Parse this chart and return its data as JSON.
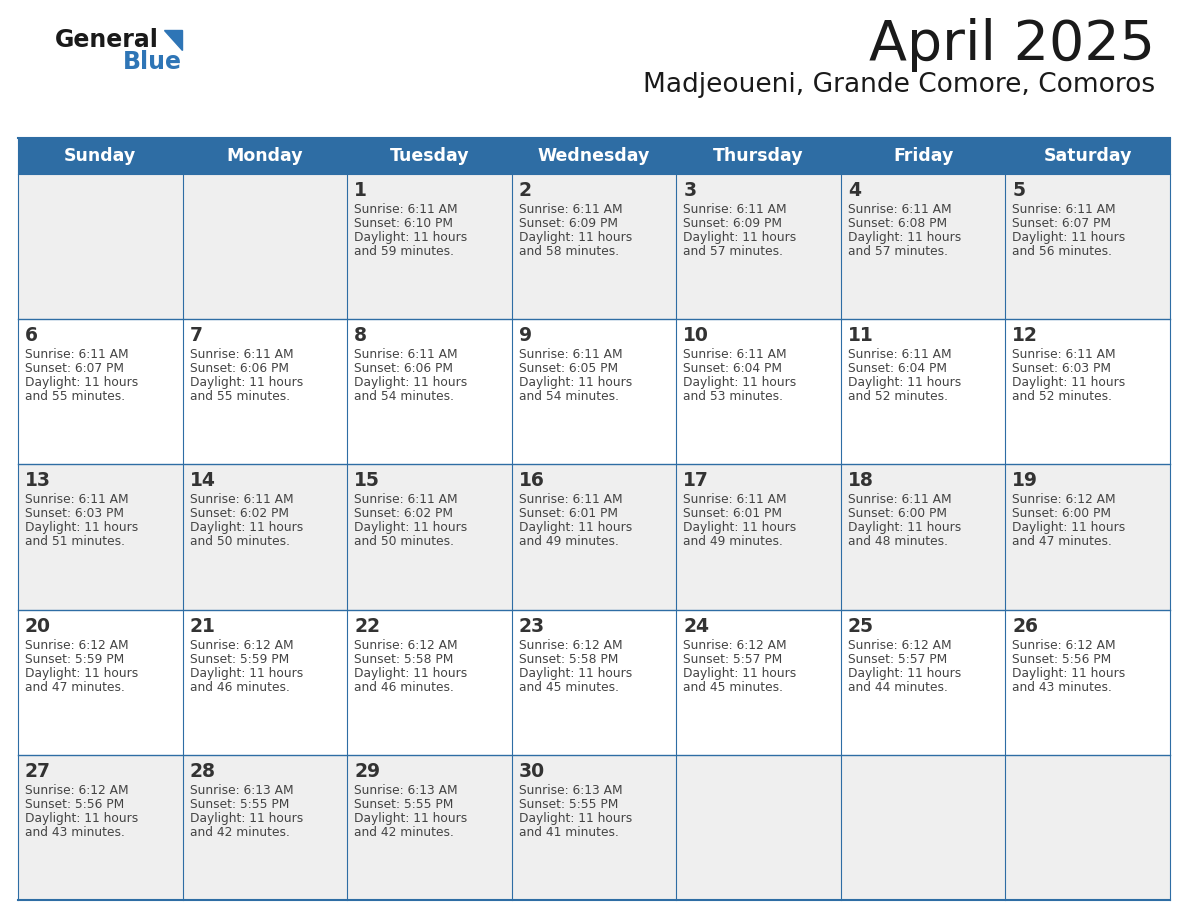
{
  "title": "April 2025",
  "subtitle": "Madjeoueni, Grande Comore, Comoros",
  "header_bg_color": "#2E6DA4",
  "header_text_color": "#FFFFFF",
  "day_names": [
    "Sunday",
    "Monday",
    "Tuesday",
    "Wednesday",
    "Thursday",
    "Friday",
    "Saturday"
  ],
  "grid_line_color": "#2E6DA4",
  "row0_bg": "#EFEFEF",
  "row1_bg": "#FFFFFF",
  "row2_bg": "#EFEFEF",
  "row3_bg": "#FFFFFF",
  "row4_bg": "#EFEFEF",
  "title_color": "#1a1a1a",
  "subtitle_color": "#1a1a1a",
  "logo_general_color": "#1a1a1a",
  "logo_blue_color": "#2E75B6",
  "cell_text_color": "#444444",
  "day_number_color": "#333333",
  "weeks": [
    {
      "days": [
        {
          "date": null,
          "sunrise": null,
          "sunset": null,
          "daylight": null
        },
        {
          "date": null,
          "sunrise": null,
          "sunset": null,
          "daylight": null
        },
        {
          "date": 1,
          "sunrise": "6:11 AM",
          "sunset": "6:10 PM",
          "daylight": "11 hours and 59 minutes."
        },
        {
          "date": 2,
          "sunrise": "6:11 AM",
          "sunset": "6:09 PM",
          "daylight": "11 hours and 58 minutes."
        },
        {
          "date": 3,
          "sunrise": "6:11 AM",
          "sunset": "6:09 PM",
          "daylight": "11 hours and 57 minutes."
        },
        {
          "date": 4,
          "sunrise": "6:11 AM",
          "sunset": "6:08 PM",
          "daylight": "11 hours and 57 minutes."
        },
        {
          "date": 5,
          "sunrise": "6:11 AM",
          "sunset": "6:07 PM",
          "daylight": "11 hours and 56 minutes."
        }
      ]
    },
    {
      "days": [
        {
          "date": 6,
          "sunrise": "6:11 AM",
          "sunset": "6:07 PM",
          "daylight": "11 hours and 55 minutes."
        },
        {
          "date": 7,
          "sunrise": "6:11 AM",
          "sunset": "6:06 PM",
          "daylight": "11 hours and 55 minutes."
        },
        {
          "date": 8,
          "sunrise": "6:11 AM",
          "sunset": "6:06 PM",
          "daylight": "11 hours and 54 minutes."
        },
        {
          "date": 9,
          "sunrise": "6:11 AM",
          "sunset": "6:05 PM",
          "daylight": "11 hours and 54 minutes."
        },
        {
          "date": 10,
          "sunrise": "6:11 AM",
          "sunset": "6:04 PM",
          "daylight": "11 hours and 53 minutes."
        },
        {
          "date": 11,
          "sunrise": "6:11 AM",
          "sunset": "6:04 PM",
          "daylight": "11 hours and 52 minutes."
        },
        {
          "date": 12,
          "sunrise": "6:11 AM",
          "sunset": "6:03 PM",
          "daylight": "11 hours and 52 minutes."
        }
      ]
    },
    {
      "days": [
        {
          "date": 13,
          "sunrise": "6:11 AM",
          "sunset": "6:03 PM",
          "daylight": "11 hours and 51 minutes."
        },
        {
          "date": 14,
          "sunrise": "6:11 AM",
          "sunset": "6:02 PM",
          "daylight": "11 hours and 50 minutes."
        },
        {
          "date": 15,
          "sunrise": "6:11 AM",
          "sunset": "6:02 PM",
          "daylight": "11 hours and 50 minutes."
        },
        {
          "date": 16,
          "sunrise": "6:11 AM",
          "sunset": "6:01 PM",
          "daylight": "11 hours and 49 minutes."
        },
        {
          "date": 17,
          "sunrise": "6:11 AM",
          "sunset": "6:01 PM",
          "daylight": "11 hours and 49 minutes."
        },
        {
          "date": 18,
          "sunrise": "6:11 AM",
          "sunset": "6:00 PM",
          "daylight": "11 hours and 48 minutes."
        },
        {
          "date": 19,
          "sunrise": "6:12 AM",
          "sunset": "6:00 PM",
          "daylight": "11 hours and 47 minutes."
        }
      ]
    },
    {
      "days": [
        {
          "date": 20,
          "sunrise": "6:12 AM",
          "sunset": "5:59 PM",
          "daylight": "11 hours and 47 minutes."
        },
        {
          "date": 21,
          "sunrise": "6:12 AM",
          "sunset": "5:59 PM",
          "daylight": "11 hours and 46 minutes."
        },
        {
          "date": 22,
          "sunrise": "6:12 AM",
          "sunset": "5:58 PM",
          "daylight": "11 hours and 46 minutes."
        },
        {
          "date": 23,
          "sunrise": "6:12 AM",
          "sunset": "5:58 PM",
          "daylight": "11 hours and 45 minutes."
        },
        {
          "date": 24,
          "sunrise": "6:12 AM",
          "sunset": "5:57 PM",
          "daylight": "11 hours and 45 minutes."
        },
        {
          "date": 25,
          "sunrise": "6:12 AM",
          "sunset": "5:57 PM",
          "daylight": "11 hours and 44 minutes."
        },
        {
          "date": 26,
          "sunrise": "6:12 AM",
          "sunset": "5:56 PM",
          "daylight": "11 hours and 43 minutes."
        }
      ]
    },
    {
      "days": [
        {
          "date": 27,
          "sunrise": "6:12 AM",
          "sunset": "5:56 PM",
          "daylight": "11 hours and 43 minutes."
        },
        {
          "date": 28,
          "sunrise": "6:13 AM",
          "sunset": "5:55 PM",
          "daylight": "11 hours and 42 minutes."
        },
        {
          "date": 29,
          "sunrise": "6:13 AM",
          "sunset": "5:55 PM",
          "daylight": "11 hours and 42 minutes."
        },
        {
          "date": 30,
          "sunrise": "6:13 AM",
          "sunset": "5:55 PM",
          "daylight": "11 hours and 41 minutes."
        },
        {
          "date": null,
          "sunrise": null,
          "sunset": null,
          "daylight": null
        },
        {
          "date": null,
          "sunrise": null,
          "sunset": null,
          "daylight": null
        },
        {
          "date": null,
          "sunrise": null,
          "sunset": null,
          "daylight": null
        }
      ]
    }
  ]
}
